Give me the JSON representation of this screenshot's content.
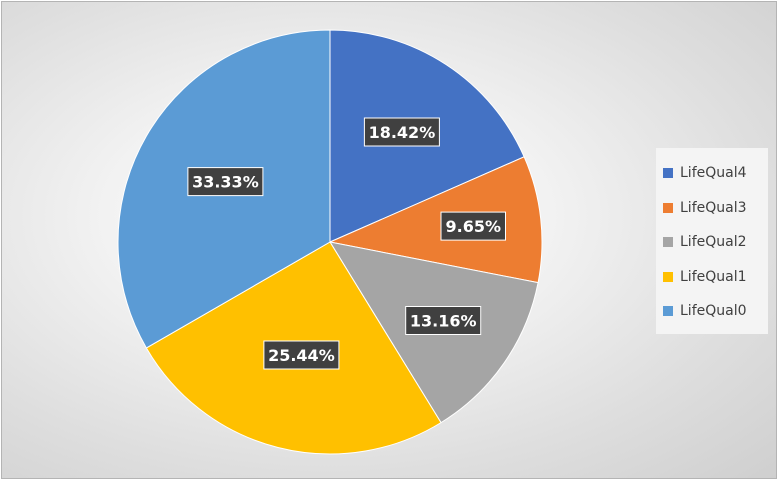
{
  "chart_data": {
    "type": "pie",
    "title": "",
    "categories": [
      "LifeQual4",
      "LifeQual3",
      "LifeQual2",
      "LifeQual1",
      "LifeQual0"
    ],
    "values": [
      18.42,
      9.65,
      13.16,
      25.44,
      33.33
    ],
    "data_labels": [
      "18.42%",
      "9.65%",
      "13.16%",
      "25.44%",
      "33.33%"
    ],
    "colors": [
      "#4472c4",
      "#ed7d31",
      "#a5a5a5",
      "#ffc000",
      "#5b9bd5"
    ],
    "start_angle_deg": 0,
    "direction": "clockwise",
    "legend": "right",
    "legend_entries": [
      "LifeQual4",
      "LifeQual3",
      "LifeQual2",
      "LifeQual1",
      "LifeQual0"
    ]
  }
}
